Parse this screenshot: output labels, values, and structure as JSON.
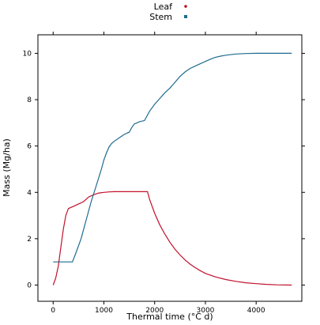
{
  "chart_data": {
    "type": "line",
    "xlabel": "Thermal time (°C d)",
    "ylabel": "Mass (Mg/ha)",
    "xlim": [
      -300,
      4900
    ],
    "ylim": [
      -0.7,
      10.8
    ],
    "xticks": [
      0,
      1000,
      2000,
      3000,
      4000
    ],
    "yticks": [
      0,
      2,
      4,
      6,
      8,
      10
    ],
    "xtick_labels": [
      "0",
      "1000",
      "2000",
      "3000",
      "4000"
    ],
    "ytick_labels": [
      "0",
      "2",
      "4",
      "6",
      "8",
      "10"
    ],
    "grid": false,
    "legend_position": "top-center",
    "series": [
      {
        "name": "Leaf",
        "color": "#c0102a",
        "x": [
          0,
          50,
          100,
          150,
          200,
          250,
          300,
          350,
          400,
          500,
          600,
          700,
          800,
          900,
          1000,
          1100,
          1200,
          1400,
          1600,
          1800,
          1860,
          1900,
          2000,
          2100,
          2200,
          2300,
          2400,
          2500,
          2600,
          2700,
          2800,
          2900,
          3000,
          3200,
          3400,
          3600,
          3800,
          4000,
          4200,
          4400,
          4700
        ],
        "y": [
          0.0,
          0.3,
          0.8,
          1.6,
          2.4,
          3.0,
          3.3,
          3.35,
          3.4,
          3.5,
          3.6,
          3.8,
          3.9,
          3.97,
          4.0,
          4.02,
          4.03,
          4.03,
          4.03,
          4.03,
          4.03,
          3.7,
          3.1,
          2.6,
          2.2,
          1.85,
          1.55,
          1.3,
          1.08,
          0.9,
          0.75,
          0.62,
          0.5,
          0.35,
          0.24,
          0.16,
          0.1,
          0.06,
          0.03,
          0.01,
          0.0
        ]
      },
      {
        "name": "Stem",
        "color": "#1f6b8f",
        "x": [
          0,
          100,
          200,
          300,
          380,
          450,
          550,
          650,
          750,
          850,
          950,
          1000,
          1050,
          1100,
          1150,
          1200,
          1300,
          1400,
          1500,
          1550,
          1600,
          1700,
          1800,
          1900,
          2000,
          2100,
          2200,
          2300,
          2400,
          2500,
          2600,
          2700,
          2800,
          2900,
          3000,
          3100,
          3200,
          3300,
          3400,
          3600,
          3800,
          4000,
          4200,
          4400,
          4700
        ],
        "y": [
          1.0,
          1.0,
          1.0,
          1.0,
          1.0,
          1.4,
          2.0,
          2.8,
          3.6,
          4.3,
          5.0,
          5.4,
          5.7,
          5.95,
          6.1,
          6.2,
          6.35,
          6.5,
          6.6,
          6.8,
          6.95,
          7.05,
          7.1,
          7.5,
          7.8,
          8.05,
          8.3,
          8.5,
          8.75,
          9.0,
          9.2,
          9.35,
          9.45,
          9.55,
          9.65,
          9.75,
          9.83,
          9.88,
          9.92,
          9.97,
          9.99,
          10.0,
          10.0,
          10.0,
          10.0
        ]
      }
    ]
  }
}
